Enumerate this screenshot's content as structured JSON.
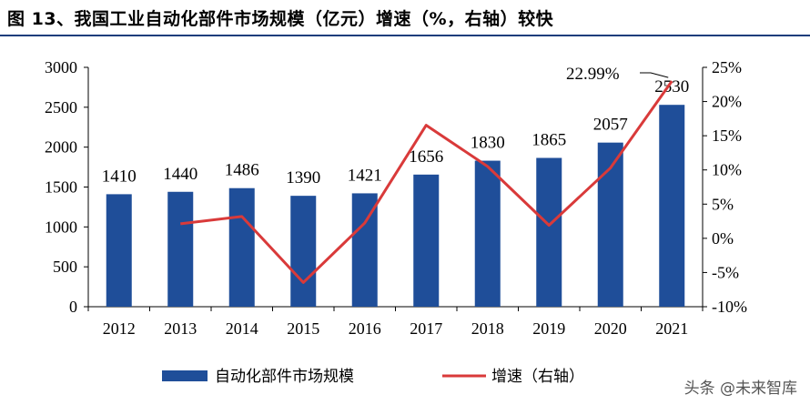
{
  "title": "图 13、我国工业自动化部件市场规模（亿元）增速（%，右轴）较快",
  "watermark": "头条 @未来智库",
  "chart_data": {
    "type": "bar",
    "categories": [
      "2012",
      "2013",
      "2014",
      "2015",
      "2016",
      "2017",
      "2018",
      "2019",
      "2020",
      "2021"
    ],
    "series": [
      {
        "name": "自动化部件市场规模",
        "type": "bar",
        "axis": "left",
        "values": [
          1410,
          1440,
          1486,
          1390,
          1421,
          1656,
          1830,
          1865,
          2057,
          2530
        ],
        "color": "#1f4e99"
      },
      {
        "name": "增速（右轴）",
        "type": "line",
        "axis": "right",
        "values": [
          null,
          2.13,
          3.19,
          -6.46,
          2.23,
          16.54,
          10.51,
          1.91,
          10.29,
          22.99
        ],
        "color": "#d93a3a"
      }
    ],
    "data_labels": [
      "1410",
      "1440",
      "1486",
      "1390",
      "1421",
      "1656",
      "1830",
      "1865",
      "2057",
      "2530"
    ],
    "annotation": "22.99%",
    "ylim_left": [
      0,
      3000
    ],
    "yticks_left": [
      "0",
      "500",
      "1000",
      "1500",
      "2000",
      "2500",
      "3000"
    ],
    "ylim_right": [
      -10,
      25
    ],
    "yticks_right": [
      "-10%",
      "-5%",
      "0%",
      "5%",
      "10%",
      "15%",
      "20%",
      "25%"
    ],
    "legend_position": "bottom",
    "grid": false
  }
}
